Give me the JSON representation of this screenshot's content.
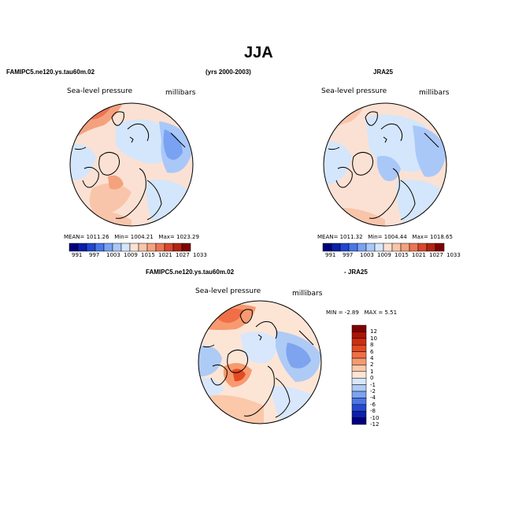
{
  "figure": {
    "title": "JJA",
    "years": "(yrs 2000-2003)"
  },
  "panels": [
    {
      "id": "model",
      "header": "FAMIPC5.ne120.ys.tau60m.02",
      "variable": "Sea-level pressure",
      "units": "millibars",
      "mean_label": "MEAN=",
      "mean_value": "1011.26",
      "min_label": "Min=",
      "min_value": "1004.21",
      "max_label": "Max=",
      "max_value": "1023.29",
      "colorbar_ticks": [
        "991",
        "997",
        "1003",
        "1009",
        "1015",
        "1021",
        "1027",
        "1033"
      ]
    },
    {
      "id": "obs",
      "header": "JRA25",
      "variable": "Sea-level pressure",
      "units": "millibars",
      "mean_label": "MEAN=",
      "mean_value": "1011.32",
      "min_label": "Min=",
      "min_value": "1004.44",
      "max_label": "Max=",
      "max_value": "1018.65",
      "colorbar_ticks": [
        "991",
        "997",
        "1003",
        "1009",
        "1015",
        "1021",
        "1027",
        "1033"
      ]
    },
    {
      "id": "diff",
      "header_left": "FAMIPC5.ne120.ys.tau60m.02",
      "header_right": "- JRA25",
      "variable": "Sea-level pressure",
      "units": "millibars",
      "min_label": "MIN =",
      "min_value": "-2.89",
      "max_label": "MAX =",
      "max_value": "5.51",
      "colorbar_ticks": [
        "12",
        "10",
        "8",
        "6",
        "4",
        "2",
        "1",
        "0",
        "-1",
        "-2",
        "-4",
        "-6",
        "-8",
        "-10",
        "-12"
      ]
    }
  ],
  "colors": {
    "abs_scale": [
      "#00007f",
      "#0a1ea8",
      "#1f46d0",
      "#4876e8",
      "#7aa2f2",
      "#a9c8f8",
      "#d4e6fb",
      "#fbe1d3",
      "#f9c5aa",
      "#f4a17e",
      "#ec7453",
      "#d8472e",
      "#b22414",
      "#800000"
    ],
    "diff_scale": [
      "#800000",
      "#a81606",
      "#cd2e12",
      "#e44a24",
      "#f06f46",
      "#f79a70",
      "#fbc8aa",
      "#fde5d6",
      "#d8e7fb",
      "#aecbf6",
      "#7ea3ef",
      "#4d75e4",
      "#2448cf",
      "#0c20ab",
      "#000080"
    ],
    "land_line": "#000000"
  }
}
